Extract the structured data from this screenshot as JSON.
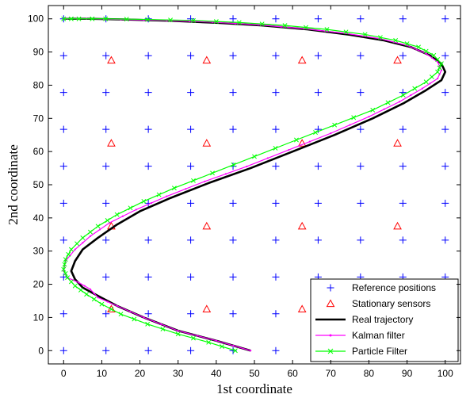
{
  "chart_data": {
    "type": "scatter",
    "xlabel": "1st coordinate",
    "ylabel": "2nd coordinate",
    "xlim": [
      -4,
      104
    ],
    "ylim": [
      -4,
      104
    ],
    "xticks": [
      0,
      10,
      20,
      30,
      40,
      50,
      60,
      70,
      80,
      90,
      100
    ],
    "yticks": [
      0,
      10,
      20,
      30,
      40,
      50,
      60,
      70,
      80,
      90,
      100
    ],
    "grid": false,
    "legend_position": "bottom-right",
    "reference_grid": [
      0,
      11.1,
      22.2,
      33.3,
      44.4,
      55.6,
      66.7,
      77.8,
      88.9,
      100
    ],
    "sensor_grid": [
      12.5,
      37.5,
      62.5,
      87.5
    ],
    "series": [
      {
        "name": "Reference positions",
        "kind": "markers-plus",
        "color": "#0000ff"
      },
      {
        "name": "Stationary sensors",
        "kind": "markers-triangle",
        "color": "#ff0000"
      },
      {
        "name": "Real trajectory",
        "kind": "line",
        "color": "#000000",
        "x": [
          49,
          40,
          30,
          21,
          14,
          9,
          5,
          3,
          2,
          3,
          5,
          9,
          14,
          20,
          28,
          38,
          49,
          60,
          71,
          81,
          89,
          95,
          99,
          100,
          99,
          96,
          91,
          84,
          75,
          64,
          52,
          40,
          28,
          16,
          7,
          2,
          0
        ],
        "y": [
          0,
          3,
          6,
          10,
          13.5,
          16.5,
          19,
          21.5,
          24,
          27,
          30.5,
          34,
          38,
          42,
          46,
          50.5,
          55,
          60,
          65,
          70,
          74.5,
          78.5,
          81.5,
          84,
          86.5,
          89,
          91.5,
          93.5,
          95.2,
          96.8,
          98,
          98.8,
          99.4,
          99.8,
          100,
          100,
          100
        ]
      },
      {
        "name": "Kalman filter",
        "kind": "line-dots",
        "color": "#ff00ff",
        "x": [
          49,
          40,
          30,
          21,
          14,
          9,
          7,
          4,
          1,
          0,
          0.5,
          3,
          7,
          12,
          19,
          27,
          37,
          48,
          59,
          70,
          80,
          88,
          94,
          98,
          99,
          98,
          95,
          90,
          83,
          74,
          63,
          51,
          39,
          27,
          15,
          6,
          1,
          0
        ],
        "y": [
          0,
          3,
          6,
          10,
          13.5,
          16,
          18.5,
          20.5,
          22,
          24,
          27,
          30.5,
          34.5,
          38.5,
          42.5,
          46.5,
          51,
          55.5,
          60.5,
          65.5,
          70.5,
          75,
          79,
          82,
          84.5,
          87,
          89.5,
          92,
          94,
          95.6,
          97,
          98.2,
          99,
          99.5,
          99.8,
          100,
          100,
          100
        ]
      },
      {
        "name": "Particle Filter",
        "kind": "line-x",
        "color": "#00ff00",
        "x": [
          45,
          38,
          30,
          22,
          15,
          10,
          6,
          3,
          1,
          0,
          0.5,
          2,
          5,
          9,
          14,
          21,
          29,
          39,
          50,
          61,
          71,
          81,
          89,
          95,
          98,
          99,
          97,
          93,
          87,
          79,
          69,
          58,
          46,
          34,
          22,
          11,
          4,
          0
        ],
        "y": [
          0,
          2.5,
          5,
          8,
          11,
          14,
          17,
          19.5,
          22,
          24.5,
          27.5,
          30.5,
          34,
          37.5,
          41,
          45,
          49,
          53.5,
          58.5,
          63.5,
          68,
          72.5,
          77,
          81,
          84,
          86.5,
          89,
          91.5,
          93.5,
          95.3,
          96.8,
          98,
          98.9,
          99.5,
          99.8,
          100,
          100,
          100
        ]
      }
    ]
  }
}
